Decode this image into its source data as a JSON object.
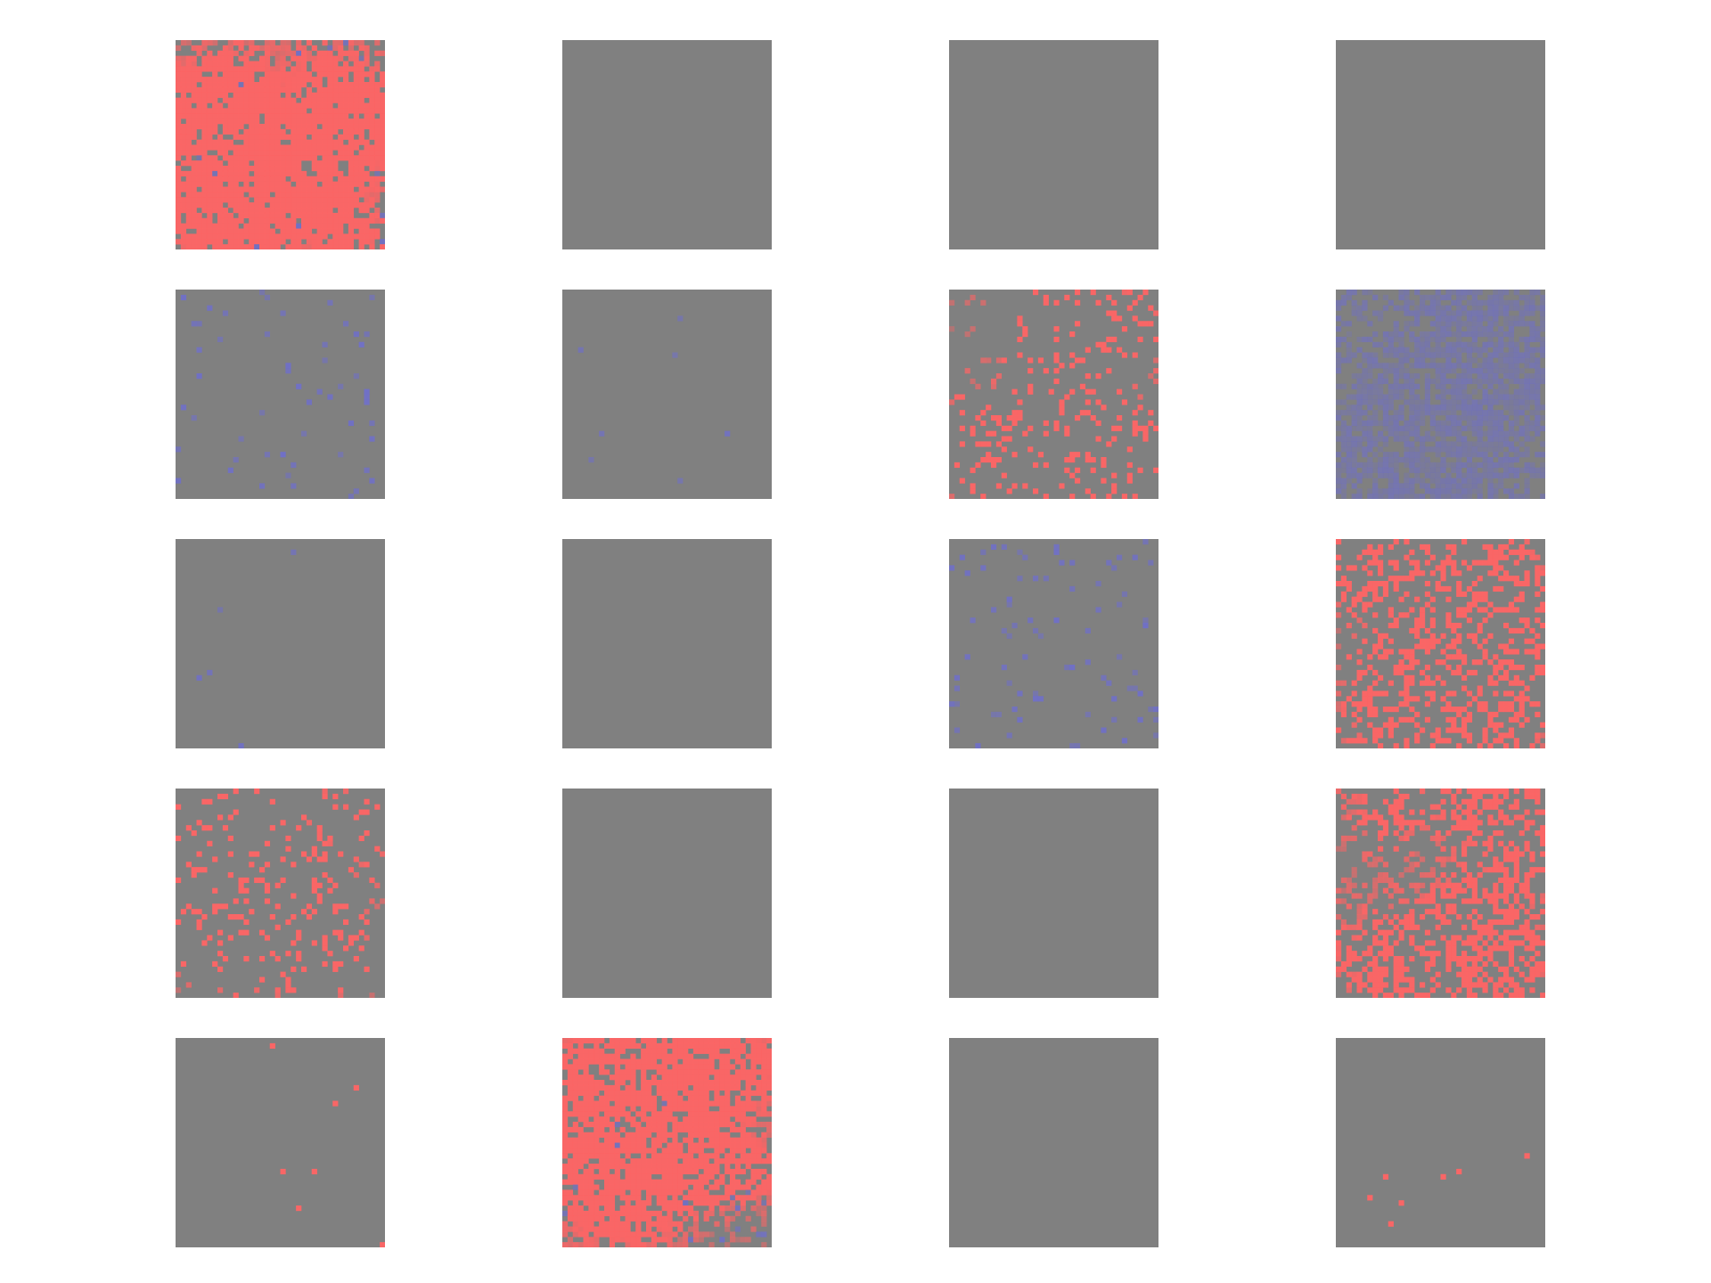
{
  "figure": {
    "rows": 5,
    "cols": 4,
    "base_color": "#808080",
    "red_color": "#ff6464",
    "blue_color": "#6e6ecd",
    "tiles": [
      {
        "pattern": "red-heavy",
        "red_density": 0.55,
        "blue_density": 0.04
      },
      {
        "pattern": "flat",
        "red_density": 0.0,
        "blue_density": 0.0
      },
      {
        "pattern": "flat",
        "red_density": 0.0,
        "blue_density": 0.0
      },
      {
        "pattern": "flat",
        "red_density": 0.0,
        "blue_density": 0.0
      },
      {
        "pattern": "blue-sparse",
        "red_density": 0.0,
        "blue_density": 0.035
      },
      {
        "pattern": "blue-trace",
        "red_density": 0.0,
        "blue_density": 0.004
      },
      {
        "pattern": "red-faint",
        "red_density": 0.09,
        "blue_density": 0.0
      },
      {
        "pattern": "blue-wash",
        "red_density": 0.0,
        "blue_density": 0.55
      },
      {
        "pattern": "blue-trace",
        "red_density": 0.0,
        "blue_density": 0.006
      },
      {
        "pattern": "flat",
        "red_density": 0.0,
        "blue_density": 0.0
      },
      {
        "pattern": "blue-sparse",
        "red_density": 0.0,
        "blue_density": 0.05
      },
      {
        "pattern": "red-medium",
        "red_density": 0.22,
        "blue_density": 0.0
      },
      {
        "pattern": "red-sparse",
        "red_density": 0.08,
        "blue_density": 0.0
      },
      {
        "pattern": "flat",
        "red_density": 0.0,
        "blue_density": 0.0
      },
      {
        "pattern": "flat",
        "red_density": 0.0,
        "blue_density": 0.0
      },
      {
        "pattern": "red-medium",
        "red_density": 0.3,
        "blue_density": 0.0
      },
      {
        "pattern": "red-trace",
        "red_density": 0.004,
        "blue_density": 0.0
      },
      {
        "pattern": "red-wash",
        "red_density": 0.5,
        "blue_density": 0.03
      },
      {
        "pattern": "flat",
        "red_density": 0.0,
        "blue_density": 0.0
      },
      {
        "pattern": "red-trace",
        "red_density": 0.003,
        "blue_density": 0.0
      }
    ]
  }
}
